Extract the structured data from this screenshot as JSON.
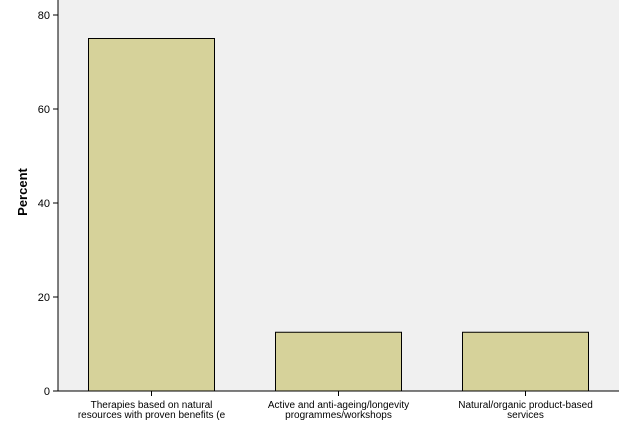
{
  "chart_data": {
    "type": "bar",
    "ylabel": "Percent",
    "xlabel": "",
    "ylim": [
      0,
      80
    ],
    "yticks": [
      0,
      20,
      40,
      60,
      80
    ],
    "grid": false,
    "categories": [
      [
        "Therapies based on natural",
        "resources with proven benefits (e"
      ],
      [
        "Active and anti-ageing/longevity",
        "programmes/workshops"
      ],
      [
        "Natural/organic product-based",
        "services"
      ]
    ],
    "values": [
      75,
      12.5,
      12.5
    ],
    "colors": {
      "bar_fill": "#d6d29a",
      "bar_stroke": "#000000",
      "plot_background": "#f0f0f0"
    }
  }
}
